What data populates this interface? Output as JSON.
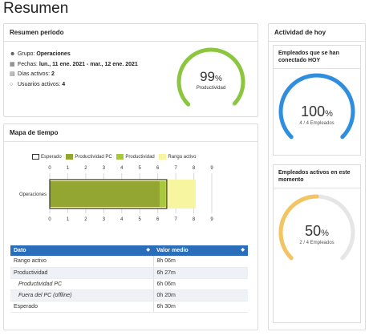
{
  "page_title": "Resumen",
  "summary": {
    "title": "Resumen período",
    "group_label": "Grupo:",
    "group_value": "Operaciones",
    "dates_label": "Fechas:",
    "dates_value": "lun., 11 ene. 2021 - mar., 12 ene. 2021",
    "days_label": "Días activos:",
    "days_value": "2",
    "users_label": "Usuarios activos:",
    "users_value": "4",
    "gauge_value": "99",
    "gauge_unit": "%",
    "gauge_label": "Productividad",
    "gauge_fraction": 0.99,
    "gauge_color": "#8cc63f"
  },
  "timemap": {
    "title": "Mapa de tiempo",
    "legend": [
      {
        "label": "Esperado",
        "color": "#ffffff",
        "border": "#333333"
      },
      {
        "label": "Productividad PC",
        "color": "#93a632",
        "border": "#93a632"
      },
      {
        "label": "Productividad",
        "color": "#a9c93d",
        "border": "#a9c93d"
      },
      {
        "label": "Rango activo",
        "color": "#f7f5a0",
        "border": "#f7f5a0"
      }
    ],
    "table_headers": [
      "Dato",
      "Valor medio"
    ],
    "rows": [
      {
        "label": "Rango activo",
        "value": "8h 06m",
        "sub": false
      },
      {
        "label": "Productividad",
        "value": "6h 27m",
        "sub": false
      },
      {
        "label": "Productividad PC",
        "value": "6h 06m",
        "sub": true
      },
      {
        "label": "Fuera del PC (offline)",
        "value": "0h 20m",
        "sub": true
      },
      {
        "label": "Esperado",
        "value": "6h 30m",
        "sub": false
      }
    ]
  },
  "chart_data": {
    "type": "bar",
    "orientation": "horizontal",
    "categories": [
      "Operaciones"
    ],
    "x_ticks": [
      "0",
      "1",
      "2",
      "3",
      "4",
      "5",
      "6",
      "7",
      "8",
      "9"
    ],
    "xlim": [
      0,
      9
    ],
    "series": [
      {
        "name": "Rango activo",
        "values": [
          8.1
        ]
      },
      {
        "name": "Productividad",
        "values": [
          6.45
        ]
      },
      {
        "name": "Productividad PC",
        "values": [
          6.1
        ]
      },
      {
        "name": "Esperado",
        "values": [
          6.5
        ]
      }
    ],
    "grid": true,
    "legend_position": "top"
  },
  "activity": {
    "title": "Actividad de hoy",
    "card1": {
      "title": "Empleados que se han conectado HOY",
      "value": "100",
      "unit": "%",
      "caption": "4 / 4 Empleados",
      "fraction": 1.0,
      "color": "#2f8fde"
    },
    "card2": {
      "title": "Empleados activos en este momento",
      "value": "50",
      "unit": "%",
      "caption": "2 / 4 Empleados",
      "fraction": 0.5,
      "color": "#f2c462"
    }
  }
}
